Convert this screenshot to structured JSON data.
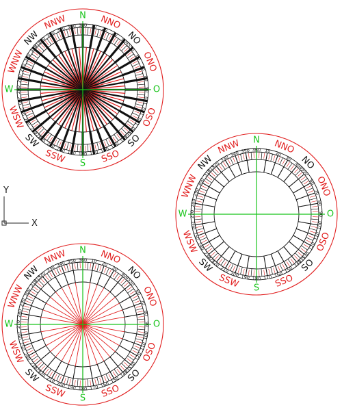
{
  "colors": {
    "red": "#e11d1d",
    "green": "#18c41a",
    "black": "#111111",
    "background": "#ffffff"
  },
  "compasses": [
    {
      "id": "compass-top-left",
      "style": "dense-spokes",
      "cardinal_labels": [
        "N",
        "O",
        "S",
        "W"
      ],
      "ordinal_labels": [
        "NO",
        "SO",
        "SW",
        "NW"
      ],
      "intermediate_labels": [
        "NNO",
        "ONO",
        "OSO",
        "SSO",
        "SSW",
        "WSW",
        "WNW",
        "NNW"
      ],
      "degree_labels": [
        "360",
        "10",
        "20",
        "30",
        "40",
        "45",
        "50",
        "60",
        "70",
        "80",
        "90",
        "100",
        "110",
        "120",
        "130",
        "135",
        "140",
        "150",
        "160",
        "170",
        "180",
        "190",
        "200",
        "210",
        "220",
        "225",
        "230",
        "240",
        "250",
        "260",
        "270",
        "280",
        "290",
        "300",
        "310",
        "315",
        "320",
        "330",
        "340",
        "350"
      ]
    },
    {
      "id": "compass-right",
      "style": "ring-only",
      "cardinal_labels": [
        "N",
        "O",
        "S",
        "W"
      ],
      "ordinal_labels": [
        "NO",
        "SO",
        "SW",
        "NW"
      ],
      "intermediate_labels": [
        "NNO",
        "ONO",
        "OSO",
        "SSO",
        "SSW",
        "WSW",
        "WNW",
        "NNW"
      ],
      "degree_labels": [
        "360",
        "10",
        "20",
        "30",
        "40",
        "45",
        "50",
        "60",
        "70",
        "80",
        "90",
        "100",
        "110",
        "120",
        "130",
        "135",
        "140",
        "150",
        "160",
        "170",
        "180",
        "190",
        "200",
        "210",
        "220",
        "225",
        "230",
        "240",
        "250",
        "260",
        "270",
        "280",
        "290",
        "300",
        "310",
        "315",
        "320",
        "330",
        "340",
        "350"
      ]
    },
    {
      "id": "compass-bottom-left",
      "style": "red-spokes",
      "cardinal_labels": [
        "N",
        "O",
        "S",
        "W"
      ],
      "ordinal_labels": [
        "NO",
        "SO",
        "SW",
        "NW"
      ],
      "intermediate_labels": [
        "NNO",
        "ONO",
        "OSO",
        "SSO",
        "SSW",
        "WSW",
        "WNW",
        "NNW"
      ],
      "degree_labels": [
        "360",
        "10",
        "20",
        "30",
        "40",
        "45",
        "50",
        "60",
        "70",
        "80",
        "90",
        "100",
        "110",
        "120",
        "130",
        "135",
        "140",
        "150",
        "160",
        "170",
        "180",
        "190",
        "200",
        "210",
        "220",
        "225",
        "230",
        "240",
        "250",
        "260",
        "270",
        "280",
        "290",
        "300",
        "310",
        "315",
        "320",
        "330",
        "340",
        "350"
      ]
    }
  ],
  "ucs_icon": {
    "x_label": "X",
    "y_label": "Y"
  }
}
